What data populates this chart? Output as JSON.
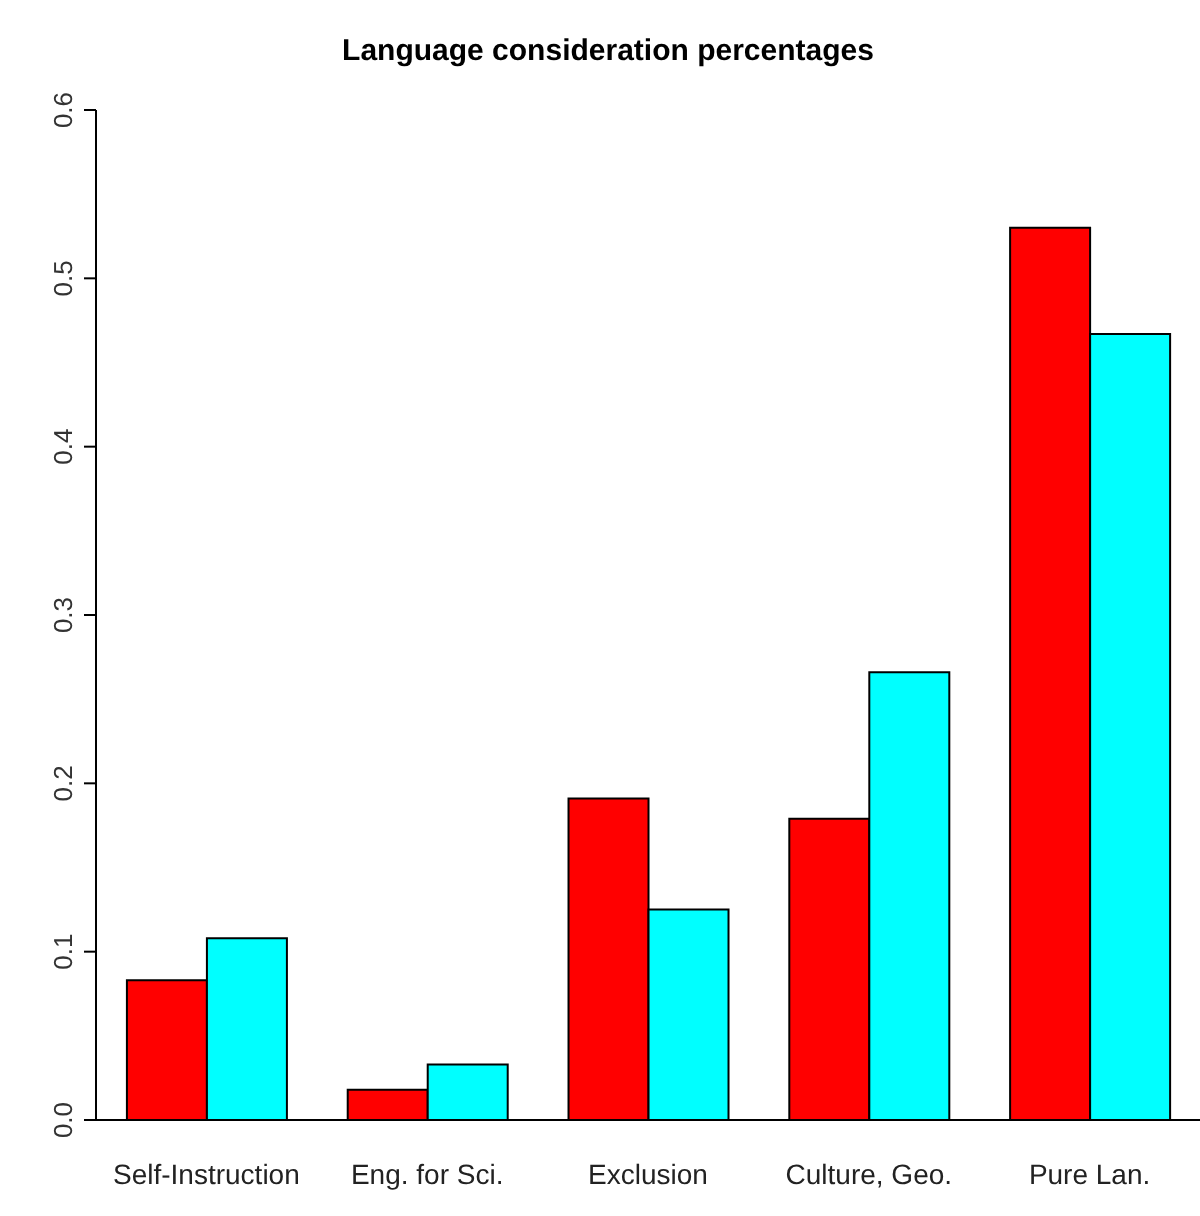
{
  "chart_data": {
    "type": "bar",
    "title": "Language consideration percentages",
    "categories": [
      "Self-Instruction",
      "Eng. for Sci.",
      "Exclusion",
      "Culture, Geo.",
      "Pure Lan."
    ],
    "series": [
      {
        "color": "#ff0000",
        "values": [
          0.083,
          0.018,
          0.191,
          0.179,
          0.53
        ]
      },
      {
        "color": "#00ffff",
        "values": [
          0.108,
          0.033,
          0.125,
          0.266,
          0.467
        ]
      }
    ],
    "ylim": [
      0,
      0.6
    ],
    "yticks": [
      {
        "value": 0,
        "label": "0.0"
      },
      0.1,
      0.2,
      0.3,
      0.4,
      0.5,
      0.6
    ],
    "grid": false,
    "legend": false
  }
}
